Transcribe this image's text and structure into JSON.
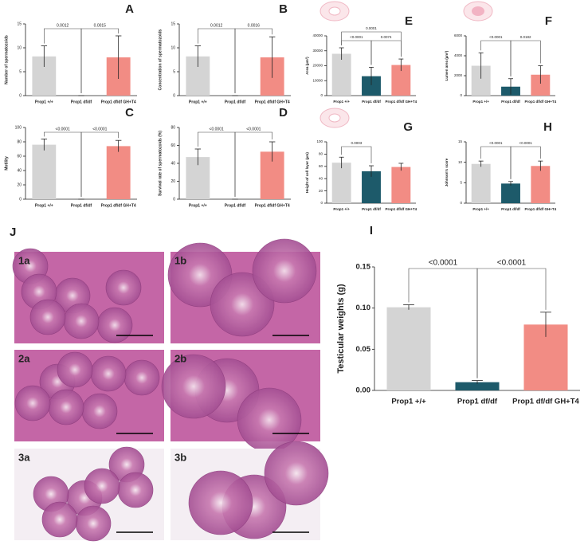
{
  "chart_data": [
    {
      "type": "bar",
      "panel": "A",
      "y_label": "Number of spermatozoids",
      "categories": [
        "Prop1 +/+",
        "Prop1 df/df",
        "Prop1 df/df GH+T4"
      ],
      "values": [
        8.2,
        0,
        8.0
      ],
      "errors": [
        2.2,
        0,
        4.5
      ],
      "colors": [
        "#d4d4d4",
        "#1d5a6a",
        "#f28c84"
      ],
      "ylim": [
        0,
        15
      ],
      "yticks": [
        0,
        5,
        10,
        15
      ],
      "annotations": [
        {
          "text": "0.0012",
          "pair": [
            0,
            1
          ]
        },
        {
          "text": "0.0015",
          "pair": [
            1,
            2
          ]
        }
      ]
    },
    {
      "type": "bar",
      "panel": "B",
      "y_label": "Concentration of spermatozoids",
      "categories": [
        "Prop1 +/+",
        "Prop1 df/df",
        "Prop1 df/df GH+T4"
      ],
      "values": [
        8.2,
        0,
        8.0
      ],
      "errors": [
        2.2,
        0,
        4.3
      ],
      "colors": [
        "#d4d4d4",
        "#1d5a6a",
        "#f28c84"
      ],
      "ylim": [
        0,
        15
      ],
      "yticks": [
        0,
        5,
        10,
        15
      ],
      "annotations": [
        {
          "text": "0.0012",
          "pair": [
            0,
            1
          ]
        },
        {
          "text": "0.0016",
          "pair": [
            1,
            2
          ]
        }
      ]
    },
    {
      "type": "bar",
      "panel": "C",
      "y_label": "Motility",
      "categories": [
        "Prop1 +/+",
        "Prop1 df/df",
        "Prop1 df/df GH+T4"
      ],
      "values": [
        76,
        0,
        74
      ],
      "errors": [
        8,
        0,
        8
      ],
      "colors": [
        "#d4d4d4",
        "#1d5a6a",
        "#f28c84"
      ],
      "ylim": [
        0,
        100
      ],
      "yticks": [
        0,
        20,
        40,
        60,
        80,
        100
      ],
      "annotations": [
        {
          "text": "<0.0001",
          "pair": [
            0,
            1
          ]
        },
        {
          "text": "<0.0001",
          "pair": [
            1,
            2
          ]
        }
      ]
    },
    {
      "type": "bar",
      "panel": "D",
      "y_label": "Survival rate of spermatozoids (%)",
      "categories": [
        "Prop1 +/+",
        "Prop1 df/df",
        "Prop1 df/df GH+T4"
      ],
      "values": [
        47,
        0,
        53
      ],
      "errors": [
        9,
        0,
        11
      ],
      "colors": [
        "#d4d4d4",
        "#1d5a6a",
        "#f28c84"
      ],
      "ylim": [
        0,
        80
      ],
      "yticks": [
        0,
        20,
        40,
        60,
        80
      ],
      "annotations": [
        {
          "text": "<0.0001",
          "pair": [
            0,
            1
          ]
        },
        {
          "text": "<0.0001",
          "pair": [
            1,
            2
          ]
        }
      ]
    },
    {
      "type": "bar",
      "panel": "E",
      "y_label": "Area (µm²)",
      "categories": [
        "Prop1 +/+",
        "Prop1 df/df",
        "Prop1 df/df GH+T4"
      ],
      "values": [
        28000,
        13000,
        20500
      ],
      "errors": [
        4000,
        6000,
        4000
      ],
      "colors": [
        "#d4d4d4",
        "#1d5a6a",
        "#f28c84"
      ],
      "ylim": [
        0,
        40000
      ],
      "yticks": [
        0,
        10000,
        20000,
        30000,
        40000
      ],
      "annotations": [
        {
          "text": "<0.0001",
          "pair": [
            0,
            1
          ]
        },
        {
          "text": "0.0074",
          "pair": [
            1,
            2
          ]
        },
        {
          "text": "0.0001",
          "pair": [
            0,
            2
          ]
        }
      ]
    },
    {
      "type": "bar",
      "panel": "F",
      "y_label": "Lumen area (µm²)",
      "categories": [
        "Prop1 +/+",
        "Prop1 df/df",
        "Prop1 df/df GH+T4"
      ],
      "values": [
        3000,
        900,
        2100
      ],
      "errors": [
        1300,
        800,
        900
      ],
      "colors": [
        "#d4d4d4",
        "#1d5a6a",
        "#f28c84"
      ],
      "ylim": [
        0,
        6000
      ],
      "yticks": [
        0,
        2000,
        4000,
        6000
      ],
      "annotations": [
        {
          "text": "<0.0001",
          "pair": [
            0,
            1
          ]
        },
        {
          "text": "0.0182",
          "pair": [
            1,
            2
          ]
        }
      ]
    },
    {
      "type": "bar",
      "panel": "G",
      "y_label": "Height of cell layer (µm)",
      "categories": [
        "Prop1 +/+",
        "Prop1 df/df",
        "Prop1 df/df GH+T4"
      ],
      "values": [
        66,
        52,
        59
      ],
      "errors": [
        9,
        9,
        6
      ],
      "colors": [
        "#d4d4d4",
        "#1d5a6a",
        "#f28c84"
      ],
      "ylim": [
        0,
        100
      ],
      "yticks": [
        0,
        20,
        40,
        60,
        80,
        100
      ],
      "annotations": [
        {
          "text": "0.0003",
          "pair": [
            0,
            1
          ]
        }
      ]
    },
    {
      "type": "bar",
      "panel": "H",
      "y_label": "Johnson's score",
      "categories": [
        "Prop1 +/+",
        "Prop1 df/df",
        "Prop1 df/df GH+T4"
      ],
      "values": [
        9.6,
        4.8,
        9.1
      ],
      "errors": [
        0.7,
        0.5,
        1.2
      ],
      "colors": [
        "#d4d4d4",
        "#1d5a6a",
        "#f28c84"
      ],
      "ylim": [
        0,
        15
      ],
      "yticks": [
        0,
        5,
        10,
        15
      ],
      "annotations": [
        {
          "text": "<0.0001",
          "pair": [
            0,
            1
          ]
        },
        {
          "text": "<0.0001",
          "pair": [
            1,
            2
          ]
        }
      ]
    },
    {
      "type": "bar",
      "panel": "I",
      "y_label": "Testicular weights (g)",
      "categories": [
        "Prop1 +/+",
        "Prop1 df/df",
        "Prop1 df/df GH+T4"
      ],
      "values": [
        0.101,
        0.01,
        0.08
      ],
      "errors": [
        0.003,
        0.002,
        0.015
      ],
      "colors": [
        "#d4d4d4",
        "#1d5a6a",
        "#f28c84"
      ],
      "ylim": [
        0,
        0.15
      ],
      "yticks": [
        {
          "value": 0,
          "label": "0.00"
        },
        {
          "value": 0.05,
          "label": "0.05"
        },
        {
          "value": 0.1,
          "label": "0.10"
        },
        {
          "value": 0.15,
          "label": "0.15"
        }
      ],
      "annotations": [
        {
          "text": "<0.0001",
          "pair": [
            0,
            1
          ]
        },
        {
          "text": "<0.0001",
          "pair": [
            1,
            2
          ]
        }
      ]
    }
  ],
  "histology": {
    "panel": "J",
    "images": [
      "1a",
      "1b",
      "2a",
      "2b",
      "3a",
      "3b"
    ]
  }
}
